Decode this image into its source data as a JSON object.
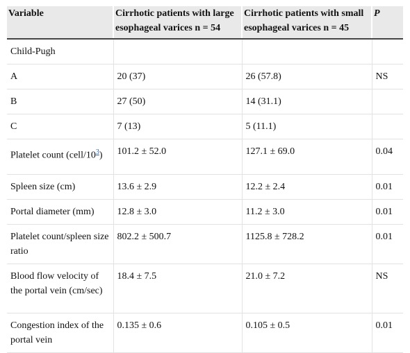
{
  "table": {
    "header": [
      "Variable",
      "Cirrhotic patients with large esophageal varices n = 54",
      "Cirrhotic patients with small esophageal varices n = 45",
      "P"
    ],
    "rows": [
      [
        "Child-Pugh",
        "",
        "",
        ""
      ],
      [
        "A",
        "20 (37)",
        "26 (57.8)",
        "NS"
      ],
      [
        "B",
        "27 (50)",
        "14 (31.1)",
        ""
      ],
      [
        "C",
        "7 (13)",
        "5 (11.1)",
        ""
      ],
      [
        [
          "Platelet count (cell/10",
          "3",
          ")"
        ],
        "101.2 ± 52.0",
        "127.1 ± 69.0",
        "0.04"
      ],
      [
        "Spleen size (cm)",
        "13.6 ± 2.9",
        "12.2 ± 2.4",
        "0.01"
      ],
      [
        "Portal diameter (mm)",
        "12.8 ± 3.0",
        "11.2 ± 3.0",
        "0.01"
      ],
      [
        "Platelet count/spleen size ratio",
        "802.2 ± 500.7",
        "1125.8 ± 728.2",
        "0.01"
      ],
      [
        "Blood flow velocity of the portal vein (cm/sec)",
        "18.4 ± 7.5",
        "21.0 ± 7.2",
        "NS"
      ],
      [
        "Congestion index of the portal vein",
        "0.135 ± 0.6",
        "0.105 ± 0.5",
        "0.01"
      ]
    ]
  }
}
